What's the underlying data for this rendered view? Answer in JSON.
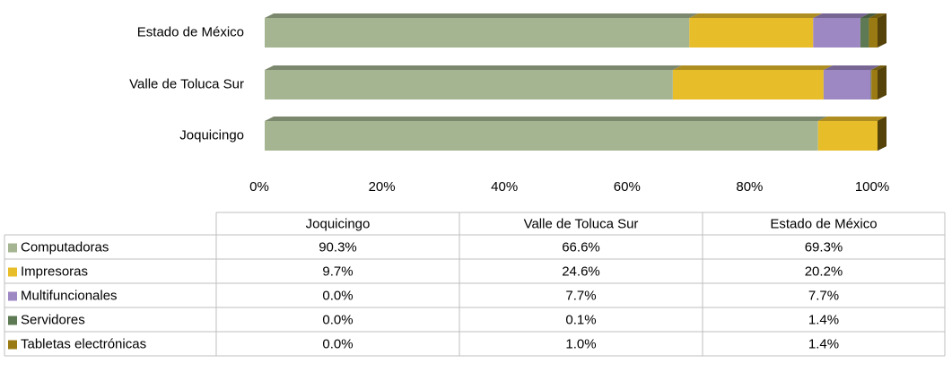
{
  "chart_data": {
    "type": "bar",
    "stacked": true,
    "orientation": "horizontal",
    "categories": [
      "Joquicingo",
      "Valle de Toluca Sur",
      "Estado de México"
    ],
    "series": [
      {
        "name": "Computadoras",
        "color": "#a5b592",
        "values": [
          90.3,
          66.6,
          69.3
        ],
        "value_labels": [
          "90.3%",
          "66.6%",
          "69.3%"
        ]
      },
      {
        "name": "Impresoras",
        "color": "#e8bd2a",
        "values": [
          9.7,
          24.6,
          20.2
        ],
        "value_labels": [
          "9.7%",
          "24.6%",
          "20.2%"
        ]
      },
      {
        "name": "Multifuncionales",
        "color": "#9e88c4",
        "values": [
          0.0,
          7.7,
          7.7
        ],
        "value_labels": [
          "0.0%",
          "7.7%",
          "7.7%"
        ]
      },
      {
        "name": "Servidores",
        "color": "#5e7a54",
        "values": [
          0.0,
          0.1,
          1.4
        ],
        "value_labels": [
          "0.0%",
          "0.1%",
          "1.4%"
        ]
      },
      {
        "name": "Tabletas electrónicas",
        "color": "#9a7a12",
        "values": [
          0.0,
          1.0,
          1.4
        ],
        "value_labels": [
          "0.0%",
          "1.0%",
          "1.4%"
        ]
      }
    ],
    "xlim": [
      0,
      100
    ],
    "xticks": [
      {
        "value": 0,
        "label": "0%"
      },
      {
        "value": 20,
        "label": "20%"
      },
      {
        "value": 40,
        "label": "40%"
      },
      {
        "value": 60,
        "label": "60%"
      },
      {
        "value": 80,
        "label": "80%"
      },
      {
        "value": 100,
        "label": "100%"
      }
    ]
  }
}
